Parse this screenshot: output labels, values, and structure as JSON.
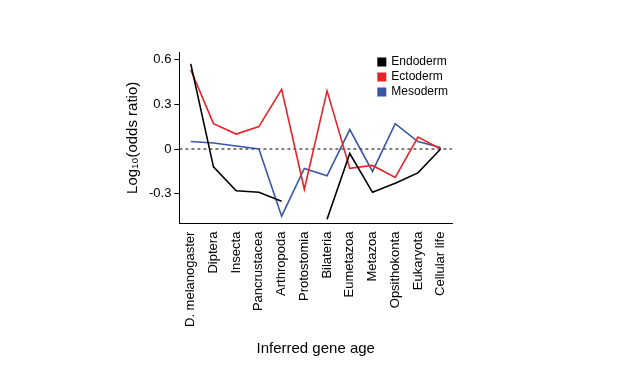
{
  "chart_data": {
    "type": "line",
    "x_label": "Inferred gene age",
    "y_label": "Log₁₀(odds ratio)",
    "categories": [
      "D. melanogaster",
      "Diptera",
      "Insecta",
      "Pancrustacea",
      "Arthropoda",
      "Protostomia",
      "Bilateria",
      "Eumetazoa",
      "Metazoa",
      "Opsithokonta",
      "Eukaryota",
      "Cellular life"
    ],
    "series": [
      {
        "name": "Endoderm",
        "color": "#000000",
        "values": [
          0.57,
          -0.12,
          -0.28,
          -0.29,
          -0.35,
          null,
          -0.47,
          -0.03,
          -0.29,
          -0.23,
          -0.16,
          0.0
        ]
      },
      {
        "name": "Ectoderm",
        "color": "#e8242a",
        "values": [
          0.53,
          0.17,
          0.1,
          0.15,
          0.4,
          -0.27,
          0.39,
          -0.13,
          -0.11,
          -0.19,
          0.08,
          0.0
        ]
      },
      {
        "name": "Mesoderm",
        "color": "#3a55a4",
        "values": [
          0.05,
          0.04,
          0.02,
          0.0,
          -0.45,
          -0.13,
          -0.18,
          0.13,
          -0.15,
          0.17,
          0.05,
          0.01
        ]
      }
    ],
    "ylim": [
      -0.5,
      0.65
    ],
    "yticks": [
      -0.3,
      0,
      0.3,
      0.6
    ],
    "reference_lines": [
      0
    ],
    "grid": false,
    "legend": "upper right"
  }
}
